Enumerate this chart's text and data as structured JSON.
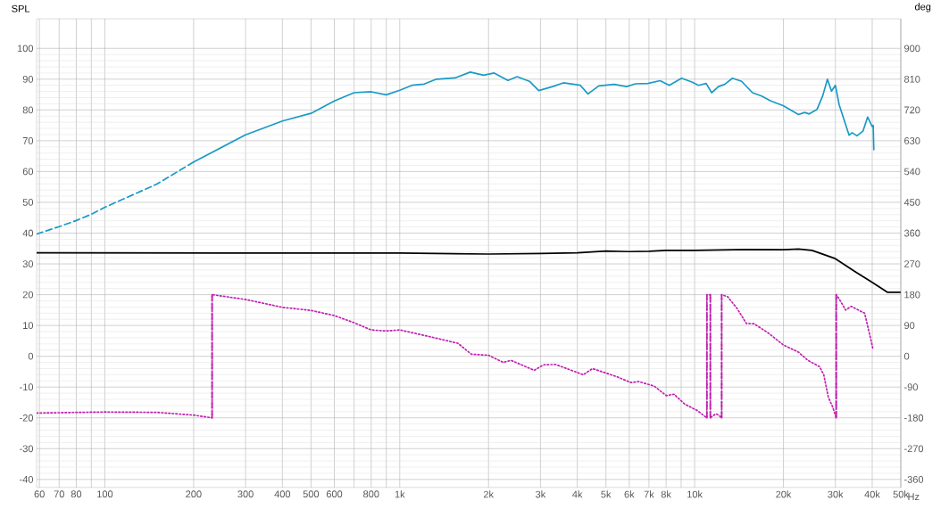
{
  "chart_data": {
    "type": "line",
    "ylabel": "SPL",
    "y2label": "deg",
    "xlabel": "Hz",
    "log": "x",
    "grid": true,
    "xlim": [
      58.7,
      50000
    ],
    "ylim": [
      -42.6,
      109.6
    ],
    "y2lim": [
      -383.4,
      986.4
    ],
    "xticks": [
      60,
      70,
      80,
      {
        "value": 90,
        "label": null
      },
      100,
      200,
      300,
      400,
      500,
      600,
      {
        "value": 700,
        "label": null
      },
      800,
      {
        "value": 900,
        "label": null
      },
      {
        "value": 1000,
        "label": "1k"
      },
      {
        "value": 2000,
        "label": "2k"
      },
      {
        "value": 3000,
        "label": "3k"
      },
      {
        "value": 4000,
        "label": "4k"
      },
      {
        "value": 5000,
        "label": "5k"
      },
      {
        "value": 6000,
        "label": "6k"
      },
      {
        "value": 7000,
        "label": "7k"
      },
      {
        "value": 8000,
        "label": "8k"
      },
      {
        "value": 9000,
        "label": null
      },
      {
        "value": 10000,
        "label": "10k"
      },
      {
        "value": 20000,
        "label": "20k"
      },
      {
        "value": 30000,
        "label": "30k"
      },
      {
        "value": 40000,
        "label": "40k"
      },
      {
        "value": 50000,
        "label": "50k"
      }
    ],
    "yticks": [
      -40,
      -30,
      -20,
      -10,
      0,
      10,
      20,
      30,
      40,
      50,
      60,
      70,
      80,
      90,
      100
    ],
    "y2ticks": [
      -360,
      -270,
      -180,
      -90,
      0,
      90,
      180,
      270,
      360,
      450,
      540,
      630,
      720,
      810,
      900
    ],
    "series": [
      {
        "color": "#1a9ac6",
        "line_style": "dashed",
        "x": [
          58.7,
          70,
          80,
          90,
          100,
          150,
          200
        ],
        "values": [
          39.7,
          42.1,
          44.1,
          46.1,
          48.4,
          55.9,
          63.1
        ]
      },
      {
        "color": "#1a9ac6",
        "line_style": "solid",
        "x": [
          200,
          300,
          400,
          500,
          600,
          700,
          800,
          900,
          1000,
          1100,
          1210,
          1332,
          1539,
          1734,
          1923,
          2091,
          2328,
          2500,
          2753,
          2960,
          3297,
          3586,
          4096,
          4347,
          4728,
          5330,
          5876,
          6300,
          6934,
          7637,
          8199,
          9030,
          9824,
          10300,
          10940,
          11420,
          12040,
          12640,
          13430,
          14430,
          15700,
          16870,
          18120,
          19950,
          22500,
          23600,
          24450,
          26000,
          27200,
          28200,
          29100,
          30000,
          30900,
          33400,
          34200,
          35500,
          37200,
          38600,
          40000,
          40300,
          40500
        ],
        "values": [
          63.1,
          71.9,
          76.4,
          78.9,
          82.9,
          85.6,
          85.9,
          84.9,
          86.4,
          88.0,
          88.4,
          90.0,
          90.4,
          92.3,
          91.3,
          92.0,
          89.6,
          90.8,
          89.3,
          86.3,
          87.6,
          88.8,
          88.0,
          85.2,
          87.8,
          88.3,
          87.6,
          88.5,
          88.6,
          89.5,
          88.0,
          90.3,
          89.0,
          88.0,
          88.6,
          85.6,
          87.6,
          88.3,
          90.3,
          89.3,
          85.6,
          84.5,
          82.9,
          81.4,
          78.5,
          79.2,
          78.7,
          80.2,
          84.7,
          90.0,
          86.1,
          88.0,
          81.7,
          71.8,
          72.6,
          71.6,
          73.1,
          77.7,
          74.6,
          75.0,
          67.1
        ]
      },
      {
        "color": "#000000",
        "line_style": "solid",
        "x": [
          58.7,
          1000,
          2000,
          3000,
          4000,
          5000,
          6000,
          7000,
          8000,
          10000,
          15000,
          20000,
          22500,
          25000,
          30000,
          35000,
          40000,
          45000,
          50000
        ],
        "values": [
          33.6,
          33.5,
          33.2,
          33.4,
          33.6,
          34.2,
          34.0,
          34.1,
          34.4,
          34.4,
          34.7,
          34.6,
          34.8,
          34.4,
          31.7,
          27.5,
          24.0,
          20.8,
          20.8
        ]
      },
      {
        "color": "#c020b0",
        "line_style": "dotted",
        "axis": "y2",
        "x": [
          58.7,
          100,
          150,
          200,
          231,
          231,
          300,
          400,
          500,
          600,
          700,
          800,
          900,
          1000,
          1224,
          1574,
          1750,
          2000,
          2245,
          2385,
          2858,
          3072,
          3378,
          4191,
          4505,
          5458,
          6080,
          6461,
          7282,
          8017,
          8510,
          9254,
          10180,
          11000,
          11000,
          11300,
          11300,
          11800,
          12000,
          12350,
          12350,
          12940,
          13920,
          14970,
          15900,
          17700,
          20000,
          22500,
          24200,
          26500,
          27400,
          28400,
          29400,
          30200,
          30200,
          30900,
          32500,
          33960,
          35900,
          37700,
          39100,
          40200
        ],
        "values": [
          -166,
          -163,
          -164,
          -172,
          -180,
          180,
          166,
          143,
          134,
          119,
          98,
          77,
          74,
          77,
          60,
          38,
          6,
          3,
          -18,
          -12,
          -41,
          -25,
          -24,
          -54,
          -36,
          -60,
          -77,
          -74,
          -87,
          -115,
          -111,
          -140,
          -158,
          -180,
          180,
          180,
          -180,
          -168,
          -171,
          -180,
          180,
          174,
          140,
          96,
          95,
          69,
          33,
          12,
          -12,
          -30,
          -54,
          -120,
          -149,
          -180,
          180,
          168,
          135,
          146,
          135,
          126,
          68,
          23
        ]
      },
      {
        "color": "#c020b0",
        "line_style": "dashed",
        "axis": "y2",
        "x": [
          231,
          231
        ],
        "values": [
          -180,
          180
        ]
      },
      {
        "color": "#c020b0",
        "line_style": "dashed",
        "axis": "y2",
        "x": [
          11000,
          11000
        ],
        "values": [
          -180,
          180
        ]
      },
      {
        "color": "#c020b0",
        "line_style": "dashed",
        "axis": "y2",
        "x": [
          11300,
          11300
        ],
        "values": [
          180,
          -180
        ]
      },
      {
        "color": "#c020b0",
        "line_style": "dashed",
        "axis": "y2",
        "x": [
          12350,
          12350
        ],
        "values": [
          -180,
          180
        ]
      },
      {
        "color": "#c020b0",
        "line_style": "dashed",
        "axis": "y2",
        "x": [
          30200,
          30200
        ],
        "values": [
          -180,
          180
        ]
      }
    ]
  }
}
